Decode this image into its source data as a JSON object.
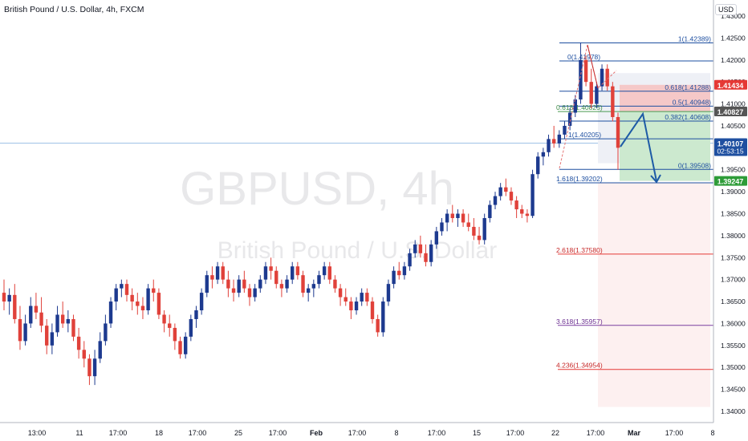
{
  "header": {
    "title": "British Pound / U.S. Dollar, 4h, FXCM",
    "currency": "USD"
  },
  "watermark": {
    "symbol": "GBPUSD, 4h",
    "name": "British Pound / U.S. Dollar"
  },
  "colors": {
    "up": "#1d3a8f",
    "down": "#e0413a",
    "fib_blue": "#1e4fa0",
    "fib_red": "#e53935",
    "fib_purple": "#7b3fa0",
    "green_zone": "#cce9cf",
    "red_zone": "#f5c8c8",
    "crosshair": "#9fc3e7",
    "arrow": "#1e5ba6"
  },
  "chart_data": {
    "type": "candlestick",
    "symbol": "GBPUSD",
    "timeframe": "4h",
    "broker": "FXCM",
    "y_axis": {
      "min": 1.34,
      "max": 1.43,
      "ticks": [
        "1.43000",
        "1.42500",
        "1.42000",
        "1.41500",
        "1.41000",
        "1.40500",
        "1.40000",
        "1.39500",
        "1.39000",
        "1.38500",
        "1.38000",
        "1.37500",
        "1.37000",
        "1.36500",
        "1.36000",
        "1.35500",
        "1.35000",
        "1.34500",
        "1.34000"
      ]
    },
    "x_axis": {
      "labels": [
        "13:00",
        "11",
        "17:00",
        "18",
        "17:00",
        "25",
        "17:00",
        "Feb",
        "17:00",
        "8",
        "17:00",
        "15",
        "17:00",
        "22",
        "17:00",
        "Mar",
        "17:00",
        "8"
      ]
    },
    "price_labels": [
      {
        "text": "1.41434",
        "value": 1.41434,
        "color": "#e53935"
      },
      {
        "text": "1.40827",
        "value": 1.40827,
        "color": "#555555"
      },
      {
        "text": "1.40107",
        "value": 1.40107,
        "color": "#1e4fa0",
        "sub": "02:53:15"
      },
      {
        "text": "1.39247",
        "value": 1.39247,
        "color": "#2e9c38"
      }
    ],
    "fib_levels": [
      {
        "text": "1(1.42389)",
        "value": 1.42389,
        "group": "blue"
      },
      {
        "text": "0(1.41978)",
        "value": 1.41978,
        "group": "blue"
      },
      {
        "text": "0.618(1.41288)",
        "value": 1.41288,
        "group": "blue"
      },
      {
        "text": "0.5(1.40948)",
        "value": 1.40948,
        "group": "blue"
      },
      {
        "text": "0.618(1.40825)",
        "value": 1.40825,
        "group": "green"
      },
      {
        "text": "0.382(1.40608)",
        "value": 1.40608,
        "group": "blue"
      },
      {
        "text": "1(1.40205)",
        "value": 1.40205,
        "group": "blue"
      },
      {
        "text": "0(1.39508)",
        "value": 1.39508,
        "group": "blue"
      },
      {
        "text": "1.618(1.39202)",
        "value": 1.39202,
        "group": "blue"
      },
      {
        "text": "2.618(1.37580)",
        "value": 1.3758,
        "group": "red"
      },
      {
        "text": "3.618(1.35957)",
        "value": 1.35957,
        "group": "purple"
      },
      {
        "text": "4.236(1.34954)",
        "value": 1.34954,
        "group": "red"
      }
    ],
    "candles": [
      [
        1.367,
        1.37,
        1.363,
        1.365
      ],
      [
        1.365,
        1.368,
        1.362,
        1.3665
      ],
      [
        1.3665,
        1.369,
        1.36,
        1.361
      ],
      [
        1.361,
        1.364,
        1.354,
        1.356
      ],
      [
        1.356,
        1.362,
        1.355,
        1.36
      ],
      [
        1.36,
        1.366,
        1.359,
        1.364
      ],
      [
        1.364,
        1.367,
        1.361,
        1.3625
      ],
      [
        1.3625,
        1.366,
        1.358,
        1.3595
      ],
      [
        1.3595,
        1.361,
        1.353,
        1.355
      ],
      [
        1.355,
        1.36,
        1.353,
        1.358
      ],
      [
        1.358,
        1.364,
        1.357,
        1.362
      ],
      [
        1.362,
        1.365,
        1.359,
        1.36
      ],
      [
        1.36,
        1.363,
        1.358,
        1.361
      ],
      [
        1.361,
        1.362,
        1.356,
        1.357
      ],
      [
        1.357,
        1.359,
        1.352,
        1.354
      ],
      [
        1.354,
        1.356,
        1.35,
        1.352
      ],
      [
        1.352,
        1.353,
        1.346,
        1.348
      ],
      [
        1.348,
        1.354,
        1.346,
        1.352
      ],
      [
        1.352,
        1.358,
        1.351,
        1.356
      ],
      [
        1.356,
        1.362,
        1.355,
        1.36
      ],
      [
        1.36,
        1.366,
        1.359,
        1.365
      ],
      [
        1.365,
        1.369,
        1.363,
        1.368
      ],
      [
        1.368,
        1.37,
        1.366,
        1.369
      ],
      [
        1.369,
        1.37,
        1.365,
        1.3665
      ],
      [
        1.3665,
        1.368,
        1.363,
        1.365
      ],
      [
        1.365,
        1.367,
        1.362,
        1.364
      ],
      [
        1.364,
        1.366,
        1.361,
        1.363
      ],
      [
        1.363,
        1.369,
        1.362,
        1.368
      ],
      [
        1.368,
        1.37,
        1.365,
        1.367
      ],
      [
        1.367,
        1.368,
        1.361,
        1.362
      ],
      [
        1.362,
        1.363,
        1.358,
        1.36
      ],
      [
        1.36,
        1.362,
        1.357,
        1.359
      ],
      [
        1.359,
        1.36,
        1.354,
        1.356
      ],
      [
        1.356,
        1.357,
        1.352,
        1.353
      ],
      [
        1.353,
        1.358,
        1.352,
        1.357
      ],
      [
        1.357,
        1.362,
        1.356,
        1.361
      ],
      [
        1.361,
        1.364,
        1.359,
        1.363
      ],
      [
        1.363,
        1.368,
        1.362,
        1.367
      ],
      [
        1.367,
        1.372,
        1.366,
        1.371
      ],
      [
        1.371,
        1.373,
        1.368,
        1.37
      ],
      [
        1.37,
        1.374,
        1.369,
        1.373
      ],
      [
        1.373,
        1.374,
        1.369,
        1.37
      ],
      [
        1.37,
        1.372,
        1.366,
        1.368
      ],
      [
        1.368,
        1.37,
        1.365,
        1.367
      ],
      [
        1.367,
        1.371,
        1.366,
        1.37
      ],
      [
        1.37,
        1.372,
        1.367,
        1.368
      ],
      [
        1.368,
        1.369,
        1.364,
        1.366
      ],
      [
        1.366,
        1.369,
        1.365,
        1.368
      ],
      [
        1.368,
        1.371,
        1.367,
        1.37
      ],
      [
        1.37,
        1.374,
        1.369,
        1.373
      ],
      [
        1.373,
        1.375,
        1.37,
        1.372
      ],
      [
        1.372,
        1.373,
        1.368,
        1.369
      ],
      [
        1.369,
        1.37,
        1.366,
        1.368
      ],
      [
        1.368,
        1.371,
        1.367,
        1.37
      ],
      [
        1.37,
        1.374,
        1.369,
        1.373
      ],
      [
        1.373,
        1.374,
        1.37,
        1.371
      ],
      [
        1.371,
        1.372,
        1.366,
        1.367
      ],
      [
        1.367,
        1.369,
        1.365,
        1.368
      ],
      [
        1.368,
        1.37,
        1.366,
        1.369
      ],
      [
        1.369,
        1.372,
        1.368,
        1.371
      ],
      [
        1.371,
        1.374,
        1.37,
        1.373
      ],
      [
        1.373,
        1.374,
        1.369,
        1.37
      ],
      [
        1.37,
        1.371,
        1.367,
        1.368
      ],
      [
        1.368,
        1.369,
        1.364,
        1.366
      ],
      [
        1.366,
        1.368,
        1.364,
        1.365
      ],
      [
        1.365,
        1.366,
        1.361,
        1.363
      ],
      [
        1.363,
        1.366,
        1.362,
        1.365
      ],
      [
        1.365,
        1.368,
        1.364,
        1.367
      ],
      [
        1.367,
        1.368,
        1.364,
        1.365
      ],
      [
        1.365,
        1.366,
        1.36,
        1.361
      ],
      [
        1.361,
        1.362,
        1.357,
        1.358
      ],
      [
        1.358,
        1.366,
        1.357,
        1.365
      ],
      [
        1.365,
        1.37,
        1.364,
        1.369
      ],
      [
        1.369,
        1.373,
        1.368,
        1.372
      ],
      [
        1.372,
        1.374,
        1.37,
        1.371
      ],
      [
        1.371,
        1.374,
        1.37,
        1.373
      ],
      [
        1.373,
        1.377,
        1.372,
        1.376
      ],
      [
        1.376,
        1.379,
        1.375,
        1.378
      ],
      [
        1.378,
        1.38,
        1.375,
        1.376
      ],
      [
        1.376,
        1.378,
        1.373,
        1.374
      ],
      [
        1.374,
        1.379,
        1.373,
        1.378
      ],
      [
        1.378,
        1.382,
        1.377,
        1.381
      ],
      [
        1.381,
        1.384,
        1.38,
        1.383
      ],
      [
        1.383,
        1.386,
        1.381,
        1.385
      ],
      [
        1.385,
        1.387,
        1.383,
        1.384
      ],
      [
        1.384,
        1.386,
        1.382,
        1.385
      ],
      [
        1.385,
        1.386,
        1.382,
        1.383
      ],
      [
        1.383,
        1.385,
        1.381,
        1.382
      ],
      [
        1.382,
        1.384,
        1.379,
        1.38
      ],
      [
        1.38,
        1.382,
        1.378,
        1.379
      ],
      [
        1.379,
        1.385,
        1.378,
        1.384
      ],
      [
        1.384,
        1.388,
        1.383,
        1.387
      ],
      [
        1.387,
        1.39,
        1.386,
        1.389
      ],
      [
        1.389,
        1.392,
        1.388,
        1.391
      ],
      [
        1.391,
        1.393,
        1.389,
        1.39
      ],
      [
        1.39,
        1.391,
        1.387,
        1.388
      ],
      [
        1.388,
        1.389,
        1.384,
        1.386
      ],
      [
        1.386,
        1.387,
        1.384,
        1.385
      ],
      [
        1.385,
        1.386,
        1.383,
        1.3845
      ],
      [
        1.3845,
        1.395,
        1.384,
        1.394
      ],
      [
        1.394,
        1.399,
        1.393,
        1.398
      ],
      [
        1.398,
        1.4,
        1.396,
        1.399
      ],
      [
        1.399,
        1.403,
        1.398,
        1.402
      ],
      [
        1.402,
        1.405,
        1.4,
        1.401
      ],
      [
        1.401,
        1.404,
        1.4,
        1.403
      ],
      [
        1.403,
        1.406,
        1.402,
        1.405
      ],
      [
        1.405,
        1.409,
        1.404,
        1.408
      ],
      [
        1.408,
        1.412,
        1.407,
        1.411
      ],
      [
        1.411,
        1.4239,
        1.41,
        1.42
      ],
      [
        1.42,
        1.421,
        1.414,
        1.415
      ],
      [
        1.415,
        1.418,
        1.409,
        1.41
      ],
      [
        1.41,
        1.415,
        1.409,
        1.414
      ],
      [
        1.414,
        1.419,
        1.413,
        1.418
      ],
      [
        1.418,
        1.419,
        1.413,
        1.414
      ],
      [
        1.414,
        1.415,
        1.406,
        1.407
      ],
      [
        1.407,
        1.408,
        1.395,
        1.4
      ]
    ]
  }
}
